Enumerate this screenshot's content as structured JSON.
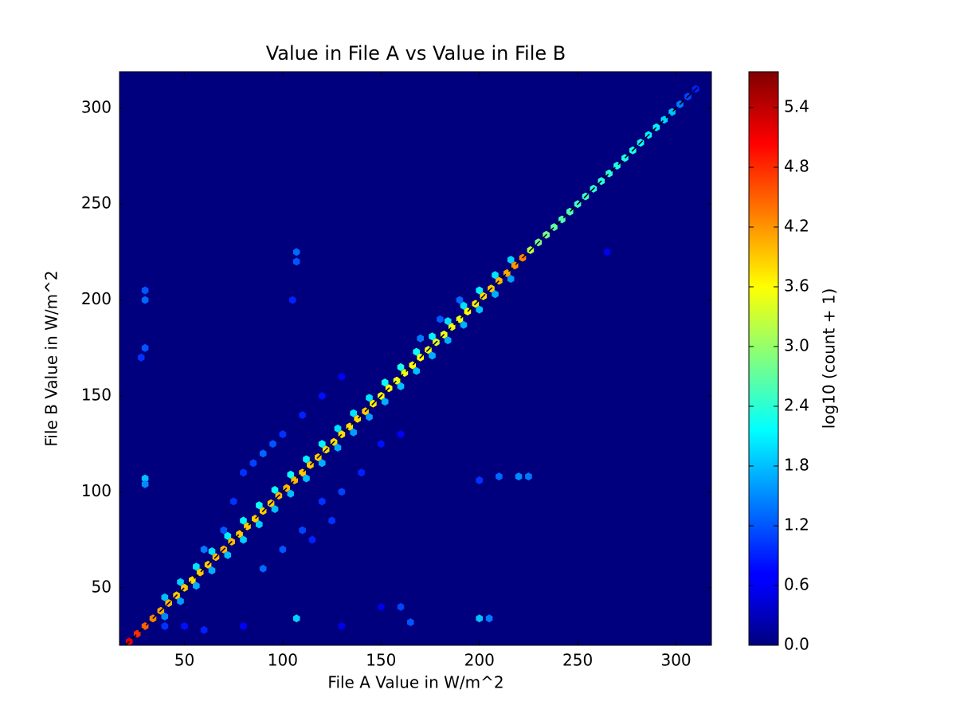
{
  "chart_data": {
    "type": "hexbin",
    "title": "Value in File A vs Value in File B",
    "x_label": "File A Value in W/m^2",
    "y_label": "File B Value in W/m^2",
    "xlim": [
      17,
      318
    ],
    "ylim": [
      20,
      319
    ],
    "xticks": [
      50,
      100,
      150,
      200,
      250,
      300
    ],
    "yticks": [
      50,
      100,
      150,
      200,
      250,
      300
    ],
    "colormap": "jet",
    "x": [
      30,
      30,
      30,
      30,
      30,
      28,
      107,
      107,
      105,
      107,
      200,
      205,
      210,
      220,
      225,
      200,
      165,
      160,
      90,
      85,
      95,
      80,
      100,
      110,
      120,
      130,
      75,
      70,
      60,
      120,
      130,
      140,
      125,
      110,
      100,
      90,
      115,
      150,
      160,
      50,
      60,
      80,
      130,
      150,
      40,
      265,
      180,
      190,
      170,
      40,
      48,
      56,
      64,
      72,
      80,
      88,
      96,
      104,
      112,
      120,
      128,
      136,
      144,
      152,
      160,
      168,
      176,
      184,
      192,
      200,
      208,
      216,
      40,
      48,
      56,
      64,
      72,
      80,
      88,
      96,
      104,
      112,
      120,
      128,
      136,
      144,
      152,
      160,
      168,
      176,
      184,
      192,
      200,
      208,
      216,
      22,
      26,
      30,
      34,
      38,
      42,
      46,
      50,
      54,
      58,
      62,
      66,
      70,
      74,
      78,
      82,
      86,
      90,
      94,
      98,
      102,
      106,
      110,
      114,
      118,
      122,
      126,
      130,
      134,
      138,
      142,
      146,
      150,
      154,
      158,
      162,
      166,
      170,
      174,
      178,
      182,
      186,
      190,
      194,
      198,
      202,
      206,
      210,
      214,
      218,
      222,
      226,
      230,
      234,
      238,
      242,
      246,
      250,
      254,
      258,
      262,
      266,
      270,
      274,
      278,
      282,
      286,
      290,
      294,
      298,
      302,
      306,
      310
    ],
    "y": [
      107,
      104,
      200,
      205,
      175,
      170,
      225,
      220,
      200,
      34,
      34,
      34,
      108,
      108,
      108,
      106,
      32,
      40,
      120,
      115,
      125,
      110,
      130,
      140,
      150,
      160,
      95,
      80,
      70,
      95,
      100,
      110,
      85,
      80,
      70,
      60,
      75,
      125,
      130,
      30,
      28,
      30,
      30,
      40,
      30,
      225,
      190,
      200,
      180,
      45,
      53,
      61,
      69,
      77,
      85,
      93,
      101,
      109,
      117,
      125,
      133,
      141,
      149,
      157,
      165,
      173,
      181,
      189,
      197,
      205,
      213,
      221,
      35,
      43,
      51,
      59,
      67,
      75,
      83,
      91,
      99,
      107,
      115,
      123,
      131,
      139,
      147,
      155,
      163,
      171,
      179,
      187,
      195,
      203,
      211,
      22,
      26,
      30,
      34,
      38,
      42,
      46,
      50,
      54,
      58,
      62,
      66,
      70,
      74,
      78,
      82,
      86,
      90,
      94,
      98,
      102,
      106,
      110,
      114,
      118,
      122,
      126,
      130,
      134,
      138,
      142,
      146,
      150,
      154,
      158,
      162,
      166,
      170,
      174,
      178,
      182,
      186,
      190,
      194,
      198,
      202,
      206,
      210,
      214,
      218,
      222,
      226,
      230,
      234,
      238,
      242,
      246,
      250,
      254,
      258,
      262,
      266,
      270,
      274,
      278,
      282,
      286,
      290,
      294,
      298,
      302,
      306,
      310
    ],
    "values": [
      1.8,
      1.5,
      1.3,
      1.2,
      1.2,
      1.0,
      1.3,
      1.2,
      0.9,
      1.9,
      1.8,
      1.4,
      1.3,
      1.5,
      1.4,
      1.0,
      1.2,
      1.1,
      1.3,
      1.1,
      1.2,
      1.0,
      1.0,
      0.9,
      0.8,
      0.7,
      1.0,
      1.2,
      1.4,
      1.0,
      1.1,
      0.9,
      1.0,
      1.1,
      1.2,
      1.3,
      0.9,
      0.8,
      0.7,
      0.8,
      0.9,
      0.7,
      0.6,
      0.6,
      1.0,
      0.6,
      1.2,
      1.3,
      1.4,
      1.8,
      1.9,
      2.0,
      2.0,
      2.1,
      2.1,
      2.2,
      2.2,
      2.2,
      2.1,
      2.1,
      2.0,
      2.0,
      2.0,
      2.2,
      2.3,
      2.2,
      2.1,
      2.0,
      2.0,
      2.1,
      2.0,
      1.9,
      1.5,
      1.6,
      1.7,
      1.7,
      1.8,
      1.9,
      1.9,
      1.8,
      1.8,
      1.8,
      1.7,
      1.7,
      1.6,
      1.6,
      1.7,
      1.8,
      1.8,
      1.7,
      1.7,
      1.7,
      1.8,
      1.7,
      1.6,
      5.2,
      4.8,
      4.5,
      4.3,
      4.1,
      4.0,
      3.9,
      3.9,
      3.8,
      3.9,
      3.9,
      4.0,
      4.0,
      4.0,
      3.9,
      3.9,
      3.9,
      3.9,
      3.9,
      4.0,
      4.0,
      4.0,
      3.9,
      3.9,
      3.9,
      3.8,
      3.8,
      3.8,
      3.8,
      3.8,
      3.9,
      3.7,
      3.6,
      3.6,
      3.5,
      3.5,
      3.6,
      3.6,
      3.5,
      3.4,
      3.5,
      3.5,
      3.5,
      3.6,
      3.7,
      3.8,
      3.9,
      4.0,
      4.1,
      4.2,
      4.3,
      3.2,
      2.8,
      2.8,
      2.7,
      2.6,
      2.6,
      2.5,
      2.5,
      2.4,
      2.4,
      2.4,
      2.3,
      2.3,
      2.3,
      2.2,
      2.1,
      2.1,
      1.9,
      1.8,
      1.4,
      1.1,
      0.9
    ],
    "reference_line": {
      "x": [
        20,
        312
      ],
      "y": [
        20,
        312
      ],
      "color": "#000000"
    },
    "colorbar": {
      "label": "log10 (count + 1)",
      "lim": [
        0,
        5.76
      ],
      "ticks": [
        {
          "value": 0,
          "label": "0.0"
        },
        0.6,
        1.2,
        1.8,
        2.4,
        {
          "value": 3,
          "label": "3.0"
        },
        3.6,
        4.2,
        4.8,
        5.4
      ]
    }
  }
}
